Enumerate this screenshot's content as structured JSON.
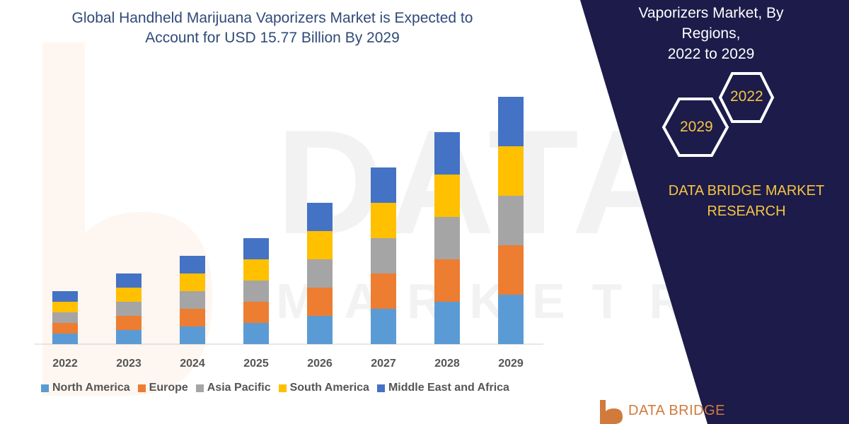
{
  "title_lines": [
    "Global Handheld Marijuana Vaporizers Market is Expected to",
    "Account for USD 15.77 Billion By 2029"
  ],
  "chart_data": {
    "type": "bar",
    "stacked": true,
    "title": "Global Handheld Marijuana Vaporizers Market is Expected to Account for USD 15.77 Billion By 2029",
    "categories": [
      "2022",
      "2023",
      "2024",
      "2025",
      "2026",
      "2027",
      "2028",
      "2029"
    ],
    "series": [
      {
        "name": "North America",
        "color": "#5b9bd5",
        "values": [
          15,
          20,
          25,
          30,
          40,
          50,
          60,
          70
        ]
      },
      {
        "name": "Europe",
        "color": "#ed7d31",
        "values": [
          15,
          20,
          25,
          30,
          40,
          50,
          60,
          70
        ]
      },
      {
        "name": "Asia Pacific",
        "color": "#a5a5a5",
        "values": [
          15,
          20,
          25,
          30,
          40,
          50,
          60,
          70
        ]
      },
      {
        "name": "South America",
        "color": "#ffc000",
        "values": [
          15,
          20,
          25,
          30,
          40,
          50,
          60,
          70
        ]
      },
      {
        "name": "Middle East and Africa",
        "color": "#4472c4",
        "values": [
          15,
          20,
          25,
          30,
          40,
          50,
          60,
          70
        ]
      }
    ],
    "xlabel": "",
    "ylabel": "",
    "ylim": [
      0,
      350
    ],
    "grid": false,
    "legend": "bottom"
  },
  "panel": {
    "heading_lines": [
      "Vaporizers Market, By",
      "Regions,",
      "2022 to 2029"
    ],
    "hex_start": "2022",
    "hex_end": "2029",
    "brand_lines": [
      "DATA BRIDGE MARKET",
      "RESEARCH"
    ],
    "logo_text": "DATA BRIDGE",
    "background_color": "#1c1b4a",
    "accent_color": "#f5c542"
  }
}
